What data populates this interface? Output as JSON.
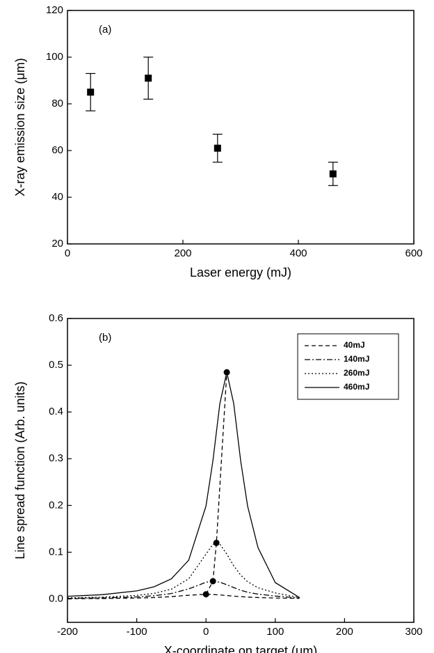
{
  "chart_data": [
    {
      "type": "scatter",
      "annotation": "(a)",
      "x_label": "Laser energy (mJ)",
      "y_label": "X-ray emission size (μm)",
      "xlim": [
        0,
        600
      ],
      "xticks": [
        0,
        200,
        400,
        600
      ],
      "ylim": [
        20,
        120
      ],
      "yticks": [
        20,
        40,
        60,
        80,
        100,
        120
      ],
      "series": [
        {
          "color": "#000000",
          "x": [
            40,
            140,
            260,
            460
          ],
          "values": [
            85,
            91,
            61,
            50
          ],
          "errors": [
            8,
            9,
            6,
            5
          ]
        }
      ]
    },
    {
      "type": "line",
      "annotation": "(b)",
      "x_label": "X-coordinate on target (μm)",
      "y_label": "Line spread function (Arb. units)",
      "xlim": [
        -200,
        300
      ],
      "xticks": [
        -200,
        -100,
        0,
        100,
        200,
        300
      ],
      "ylim": [
        -0.05,
        0.6
      ],
      "yticks": [
        {
          "value": 0,
          "label": "0.0"
        },
        0.1,
        0.2,
        0.3,
        0.4,
        0.5,
        0.6
      ],
      "legend": "upper right",
      "x": [
        -200,
        -150,
        -100,
        -75,
        -50,
        -25,
        0,
        10,
        20,
        30,
        40,
        50,
        60,
        75,
        100,
        135
      ],
      "series": [
        {
          "name": "40mJ",
          "color": "#000000",
          "linestyle": "dashed",
          "values": [
            0.0006,
            0.001,
            0.002,
            0.003,
            0.005,
            0.008,
            0.01,
            0.0096,
            0.0086,
            0.0074,
            0.006,
            0.005,
            0.004,
            0.003,
            0.002,
            0.0012
          ]
        },
        {
          "name": "140mJ",
          "color": "#000000",
          "linestyle": "dashdot",
          "values": [
            0.0013,
            0.0022,
            0.0044,
            0.0069,
            0.0117,
            0.0215,
            0.0358,
            0.038,
            0.0358,
            0.0304,
            0.0243,
            0.0187,
            0.0144,
            0.0104,
            0.0063,
            0.002
          ]
        },
        {
          "name": "260mJ",
          "color": "#000000",
          "linestyle": "dotted",
          "values": [
            0.0023,
            0.0038,
            0.0076,
            0.012,
            0.021,
            0.043,
            0.096,
            0.117,
            0.117,
            0.096,
            0.071,
            0.051,
            0.037,
            0.024,
            0.013,
            0.003
          ]
        },
        {
          "name": "460mJ",
          "color": "#000000",
          "linestyle": "solid",
          "values": [
            0.0057,
            0.0092,
            0.0173,
            0.026,
            0.043,
            0.083,
            0.199,
            0.296,
            0.418,
            0.485,
            0.418,
            0.296,
            0.199,
            0.11,
            0.035,
            0.003
          ]
        }
      ],
      "peaks": {
        "color": "#000000",
        "linestyle": "dashed",
        "x": [
          0,
          10,
          15,
          30
        ],
        "values": [
          0.01,
          0.038,
          0.12,
          0.485
        ]
      }
    }
  ]
}
